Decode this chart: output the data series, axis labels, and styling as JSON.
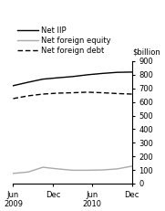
{
  "title": "",
  "ylabel": "$billion",
  "ylim": [
    0,
    900
  ],
  "yticks": [
    0,
    100,
    200,
    300,
    400,
    500,
    600,
    700,
    800,
    900
  ],
  "background_color": "#ffffff",
  "legend_entries": [
    "Net IIP",
    "Net foreign equity",
    "Net foreign debt"
  ],
  "xtick_positions": [
    0,
    2,
    4,
    6
  ],
  "xtick_labels": [
    "Jun\n2009",
    "Dec",
    "Jun\n2010",
    "Dec"
  ],
  "net_iip": [
    720,
    745,
    768,
    778,
    787,
    800,
    810,
    818,
    820
  ],
  "net_foreign_equity": [
    75,
    85,
    120,
    108,
    98,
    98,
    100,
    108,
    128
  ],
  "net_foreign_debt": [
    625,
    645,
    658,
    665,
    668,
    672,
    668,
    662,
    658
  ],
  "color_iip": "#000000",
  "color_equity": "#aaaaaa",
  "color_debt": "#000000",
  "tick_fontsize": 6.0,
  "legend_fontsize": 6.0
}
